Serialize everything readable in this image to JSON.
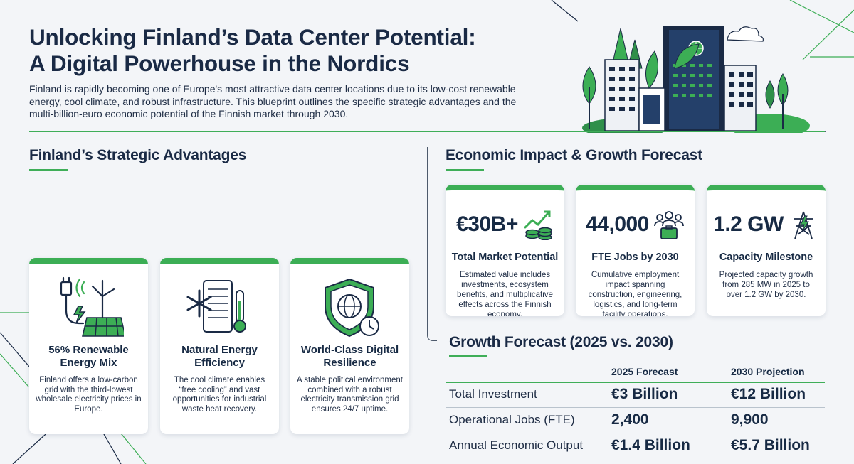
{
  "header": {
    "title_line1": "Unlocking Finland’s Data Center Potential:",
    "title_line2": "A Digital Powerhouse in the Nordics",
    "intro": "Finland is rapidly becoming one of Europe's most attractive data center locations due to its low-cost renewable energy, cool climate, and robust infrastructure. This blueprint outlines the specific strategic advantages and the multi-billion-euro economic potential of the Finnish market through 2030."
  },
  "advantages": {
    "title": "Finland’s Strategic Advantages",
    "cards": [
      {
        "icon": "renewable-energy-icon",
        "title": "56% Renewable Energy Mix",
        "desc": "Finland offers a low-carbon grid with the third-lowest wholesale electricity prices in Europe."
      },
      {
        "icon": "cooling-server-icon",
        "title": "Natural Energy Efficiency",
        "desc": "The cool climate enables “free cooling” and vast opportunities for industrial waste heat recovery."
      },
      {
        "icon": "shield-globe-icon",
        "title": "World-Class Digital Resilience",
        "desc": "A stable political environment combined with a robust electricity transmission grid ensures 24/7 uptime."
      }
    ]
  },
  "economic": {
    "title": "Economic Impact & Growth Forecast",
    "kpis": [
      {
        "value": "€30B+",
        "icon": "growth-coins-icon",
        "label": "Total Market Potential",
        "desc": "Estimated value includes investments, ecosystem benefits, and multiplicative effects across the Finnish economy."
      },
      {
        "value": "44,000",
        "icon": "team-briefcase-icon",
        "label": "FTE Jobs by 2030",
        "desc": "Cumulative employment impact spanning construction, engineering, logistics, and long-term facility operations."
      },
      {
        "value": "1.2 GW",
        "icon": "power-tower-icon",
        "label": "Capacity Milestone",
        "desc": "Projected capacity growth from 285 MW in 2025 to over 1.2 GW by 2030."
      }
    ]
  },
  "forecast": {
    "title": "Growth Forecast (2025 vs. 2030)",
    "col1": "2025 Forecast",
    "col2": "2030 Projection",
    "rows": [
      {
        "label": "Total Investment",
        "v2025": "€3 Billion",
        "v2030": "€12 Billion"
      },
      {
        "label": "Operational Jobs (FTE)",
        "v2025": "2,400",
        "v2030": "9,900"
      },
      {
        "label": "Annual Economic Output",
        "v2025": "€1.4 Billion",
        "v2030": "€5.7 Billion"
      }
    ]
  },
  "colors": {
    "accent": "#3cae55",
    "navy": "#1a2a45",
    "background": "#f3f5f8"
  }
}
